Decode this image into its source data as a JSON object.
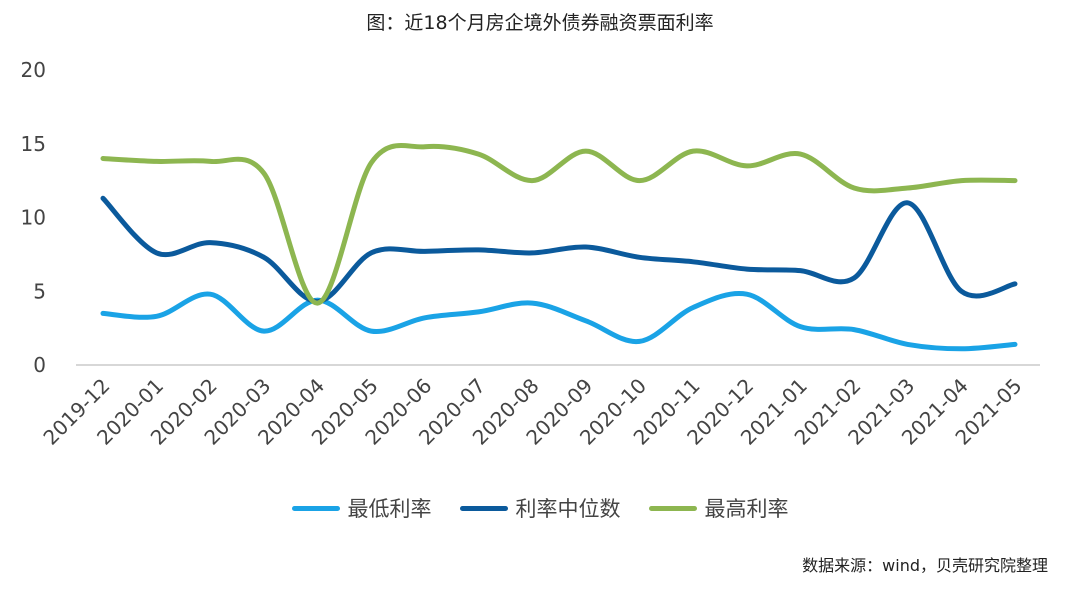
{
  "chart_data": {
    "type": "line",
    "title": "图：近18个月房企境外债券融资票面利率",
    "source": "数据来源：wind，贝壳研究院整理",
    "categories": [
      "2019-12",
      "2020-01",
      "2020-02",
      "2020-03",
      "2020-04",
      "2020-05",
      "2020-06",
      "2020-07",
      "2020-08",
      "2020-09",
      "2020-10",
      "2020-11",
      "2020-12",
      "2021-01",
      "2021-02",
      "2021-03",
      "2021-04",
      "2021-05"
    ],
    "ylim": [
      0,
      20
    ],
    "yticks": [
      "0",
      "5",
      "10",
      "15",
      "20"
    ],
    "grid": false,
    "legend_position": "bottom",
    "series": [
      {
        "name": "最低利率",
        "color": "#1aa3e6",
        "values": [
          3.5,
          3.3,
          4.8,
          2.3,
          4.4,
          2.3,
          3.2,
          3.6,
          4.2,
          3.0,
          1.6,
          3.9,
          4.8,
          2.6,
          2.4,
          1.4,
          1.1,
          1.4
        ]
      },
      {
        "name": "利率中位数",
        "color": "#0b5a9c",
        "values": [
          11.3,
          7.6,
          8.3,
          7.3,
          4.3,
          7.6,
          7.7,
          7.8,
          7.6,
          8.0,
          7.3,
          7.0,
          6.5,
          6.4,
          5.9,
          11.0,
          5.0,
          5.5
        ]
      },
      {
        "name": "最高利率",
        "color": "#8db650",
        "values": [
          14.0,
          13.8,
          13.8,
          13.0,
          4.2,
          13.7,
          14.8,
          14.3,
          12.5,
          14.5,
          12.5,
          14.5,
          13.5,
          14.3,
          12.0,
          12.0,
          12.5,
          12.5
        ]
      }
    ]
  }
}
